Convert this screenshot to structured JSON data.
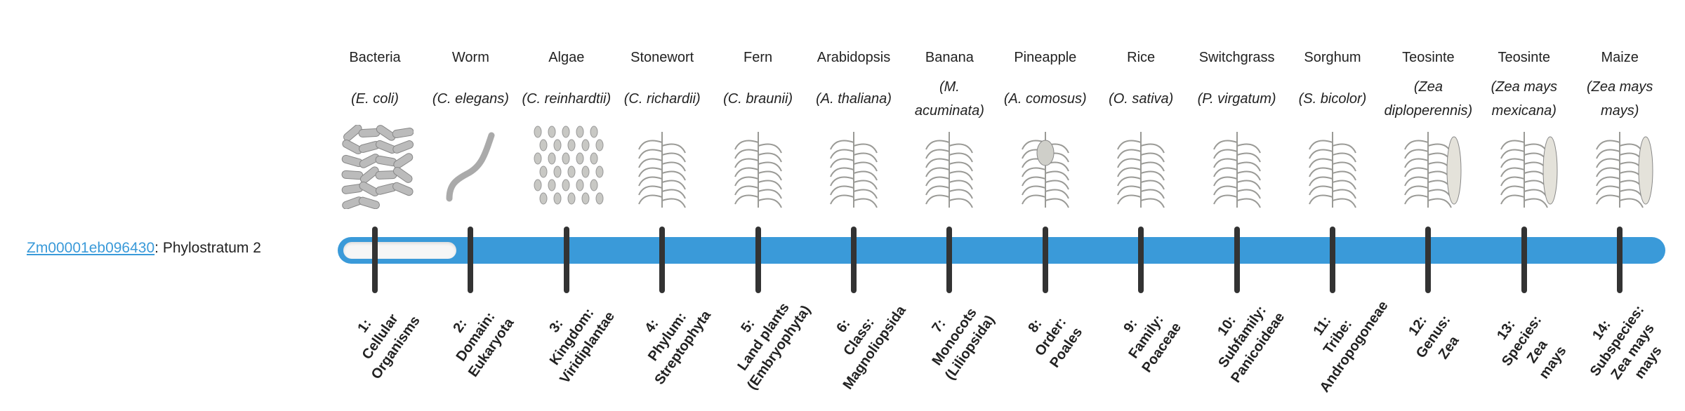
{
  "gene": {
    "id": "Zm00001eb096430",
    "suffix": ": Phylostratum 2"
  },
  "progress": {
    "phylostratum": 2,
    "total": 14,
    "bar_color": "#3a9ad9"
  },
  "organisms": [
    {
      "name": "Bacteria",
      "species": "(E. coli)",
      "icon": "bacteria-image"
    },
    {
      "name": "Worm",
      "species": "(C. elegans)",
      "icon": "worm-image"
    },
    {
      "name": "Algae",
      "species": "(C. reinhardtii)",
      "icon": "algae-image"
    },
    {
      "name": "Stonewort",
      "species": "(C. richardii)",
      "icon": "stonewort-image"
    },
    {
      "name": "Fern",
      "species": "(C. braunii)",
      "icon": "fern-image"
    },
    {
      "name": "Arabidopsis",
      "species": "(A. thaliana)",
      "icon": "arabidopsis-image"
    },
    {
      "name": "Banana",
      "species": "(M. acuminata)",
      "icon": "banana-image"
    },
    {
      "name": "Pineapple",
      "species": "(A. comosus)",
      "icon": "pineapple-image"
    },
    {
      "name": "Rice",
      "species": "(O. sativa)",
      "icon": "rice-image"
    },
    {
      "name": "Switchgrass",
      "species": "(P. virgatum)",
      "icon": "switchgrass-image"
    },
    {
      "name": "Sorghum",
      "species": "(S. bicolor)",
      "icon": "sorghum-image"
    },
    {
      "name": "Teosinte",
      "species": "(Zea diploperennis)",
      "icon": "teosinte-image"
    },
    {
      "name": "Teosinte",
      "species": "(Zea mays mexicana)",
      "icon": "teosinte-mexicana-image"
    },
    {
      "name": "Maize",
      "species": "(Zea mays mays)",
      "icon": "maize-image"
    }
  ],
  "strata": [
    [
      "1:",
      "Cellular",
      "Organisms"
    ],
    [
      "2:",
      "Domain:",
      "Eukaryota"
    ],
    [
      "3:",
      "Kingdom:",
      "Viridiplantae"
    ],
    [
      "4:",
      "Phylum:",
      "Streptophyta"
    ],
    [
      "5:",
      "Land plants",
      "(Embryophyta)"
    ],
    [
      "6:",
      "Class:",
      "Magnoliopsida"
    ],
    [
      "7:",
      "Monocots",
      "(Liliopsida)"
    ],
    [
      "8:",
      "Order:",
      "Poales"
    ],
    [
      "9:",
      "Family:",
      "Poaceae"
    ],
    [
      "10:",
      "Subfamily:",
      "Panicoideae"
    ],
    [
      "11:",
      "Tribe:",
      "Andropogoneae"
    ],
    [
      "12:",
      "Genus:",
      "Zea"
    ],
    [
      "13:",
      "Species:",
      "Zea",
      "mays"
    ],
    [
      "14:",
      "Subspecies:",
      "Zea mays",
      "mays"
    ]
  ]
}
